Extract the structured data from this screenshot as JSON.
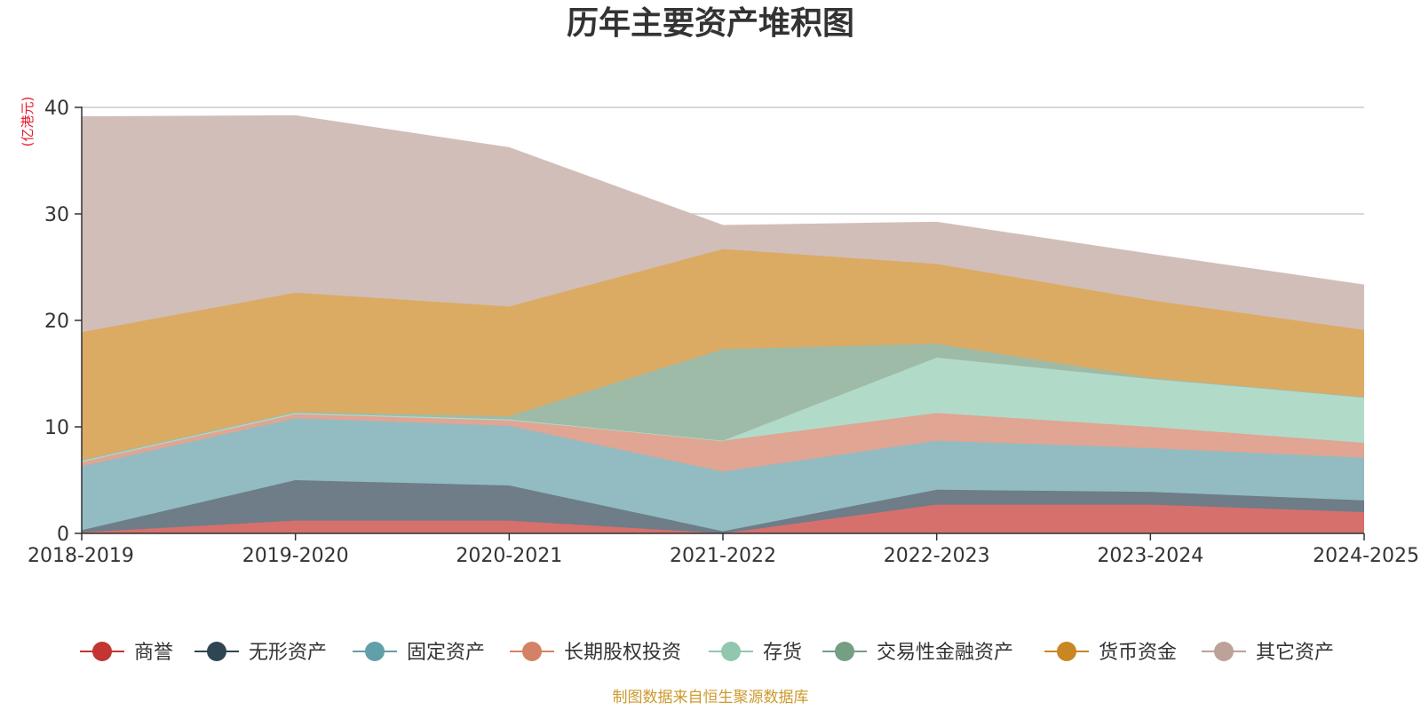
{
  "chart_data": {
    "type": "area",
    "stacked": true,
    "title": "历年主要资产堆积图",
    "unit_label": "(亿港元)",
    "source_note": "制图数据来自恒生聚源数据库",
    "categories": [
      "2018-2019",
      "2019-2020",
      "2020-2021",
      "2021-2022",
      "2022-2023",
      "2023-2024",
      "2024-2025"
    ],
    "ylim": [
      0,
      40
    ],
    "yticks": [
      0,
      10,
      20,
      30,
      40
    ],
    "ytick_labels": [
      "0",
      "10",
      "20",
      "30",
      "40"
    ],
    "grid": true,
    "legend_position": "bottom",
    "series": [
      {
        "name": "商誉",
        "color": "#c23531",
        "fill": "#d6706c",
        "values": [
          0.1,
          1.2,
          1.2,
          0.0,
          2.7,
          2.7,
          2.0
        ]
      },
      {
        "name": "无形资产",
        "color": "#2f4554",
        "fill": "#6e7d88",
        "values": [
          0.2,
          3.8,
          3.3,
          0.2,
          1.4,
          1.2,
          1.1
        ]
      },
      {
        "name": "固定资产",
        "color": "#61a0a8",
        "fill": "#92bcc2",
        "values": [
          6.0,
          5.8,
          5.6,
          5.6,
          4.6,
          4.1,
          4.0
        ]
      },
      {
        "name": "长期股权投资",
        "color": "#d48265",
        "fill": "#e0a593",
        "values": [
          0.4,
          0.4,
          0.5,
          2.9,
          2.6,
          2.0,
          1.4
        ]
      },
      {
        "name": "存货",
        "color": "#91c7ae",
        "fill": "#b2dac9",
        "values": [
          0.1,
          0.1,
          0.1,
          0.0,
          5.2,
          4.5,
          4.3
        ]
      },
      {
        "name": "交易性金融资产",
        "color": "#749f83",
        "fill": "#9ebba7",
        "values": [
          0.1,
          0.1,
          0.3,
          8.6,
          1.3,
          0.1,
          0.0
        ]
      },
      {
        "name": "货币资金",
        "color": "#ca8622",
        "fill": "#dbab64",
        "values": [
          12.0,
          11.2,
          10.3,
          9.4,
          7.5,
          7.3,
          6.3
        ]
      },
      {
        "name": "其它资产",
        "color": "#bda29a",
        "fill": "#d2beb8",
        "values": [
          20.2,
          16.6,
          14.9,
          2.2,
          3.9,
          4.3,
          4.2
        ]
      }
    ]
  }
}
